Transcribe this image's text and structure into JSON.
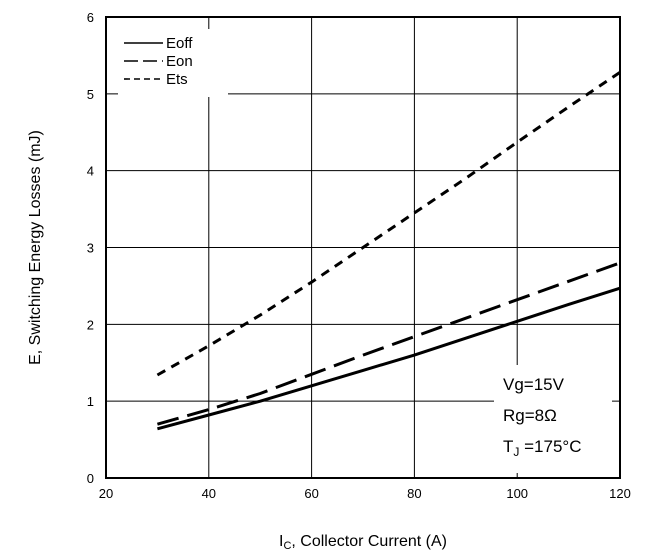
{
  "chart_data": {
    "type": "line",
    "title": "",
    "xlabel": {
      "main": "I",
      "sub": "C",
      "rest": ", Collector Current (A)"
    },
    "ylabel": "E, Switching Energy Losses (mJ)",
    "xlim": [
      20,
      120
    ],
    "ylim": [
      0,
      6
    ],
    "xticks": [
      20,
      40,
      60,
      80,
      100,
      120
    ],
    "yticks": [
      0,
      1,
      2,
      3,
      4,
      5,
      6
    ],
    "grid": true,
    "legend_position": "top-left",
    "series": [
      {
        "name": "Eoff",
        "style": "solid",
        "x": [
          30,
          40,
          50,
          60,
          70,
          80,
          90,
          100,
          110,
          120
        ],
        "y": [
          0.64,
          0.82,
          1.0,
          1.2,
          1.4,
          1.6,
          1.82,
          2.04,
          2.26,
          2.47
        ]
      },
      {
        "name": "Eon",
        "style": "long-dash",
        "x": [
          30,
          40,
          50,
          60,
          70,
          80,
          90,
          100,
          110,
          120
        ],
        "y": [
          0.7,
          0.89,
          1.1,
          1.35,
          1.6,
          1.84,
          2.08,
          2.32,
          2.56,
          2.8
        ]
      },
      {
        "name": "Ets",
        "style": "short-dash",
        "x": [
          30,
          40,
          50,
          60,
          70,
          80,
          90,
          100,
          110,
          120
        ],
        "y": [
          1.34,
          1.72,
          2.12,
          2.55,
          3.0,
          3.45,
          3.9,
          4.37,
          4.83,
          5.28
        ]
      }
    ],
    "conditions": [
      {
        "main": "Vg=15V"
      },
      {
        "main": "Rg=8Ω"
      },
      {
        "main": "T",
        "sub": "J",
        "rest": " =175°C"
      }
    ]
  }
}
